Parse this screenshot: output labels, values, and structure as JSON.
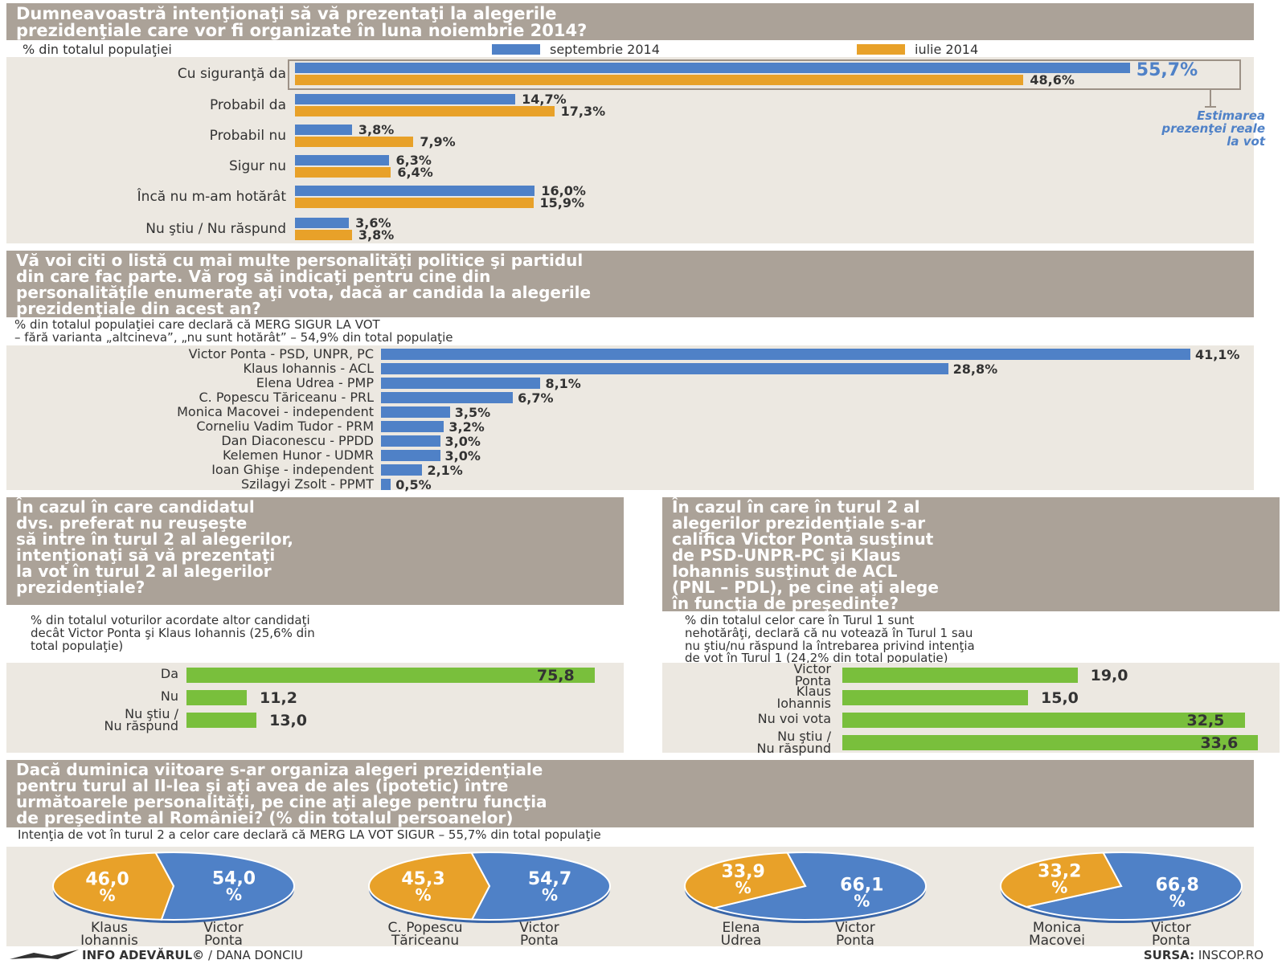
{
  "colors": {
    "blue": "#4f81c7",
    "orange": "#e8a129",
    "green": "#79bf3c",
    "header": "#aba298",
    "panel": "#ece8e1"
  },
  "section1": {
    "title_lines": [
      "Dumneavoastră  intenţionaţi să vă prezentaţi la alegerile",
      "prezidenţiale care vor fi organizate în luna noiembrie 2014?"
    ],
    "note": "% din totalul populaţiei",
    "estimate_lines": [
      "Estimarea",
      "prezenţei reale",
      "la vot"
    ]
  },
  "section2": {
    "title_lines": [
      "Vă voi citi o listă cu mai multe personalităţi politice şi partidul",
      "din care fac parte. Vă rog să indicaţi pentru cine din",
      "personalităţile enumerate aţi vota, dacă ar candida la alegerile",
      "prezidenţiale din acest an?"
    ],
    "note_lines": [
      "% din totalul populaţiei care declară că MERG SIGUR LA VOT",
      "– fără varianta „altcineva”, „nu sunt hotărât” – 54,9% din total populaţie"
    ]
  },
  "section3": {
    "title_lines": [
      "În cazul în care candidatul",
      "dvs. preferat nu reuşeşte",
      "să intre în turul 2 al alegerilor,",
      "intenţionaţi să vă prezentaţi",
      "la vot în turul 2 al alegerilor",
      "prezidenţiale?"
    ],
    "note_lines": [
      "% din totalul voturilor acordate altor candidaţi",
      "decât Victor Ponta şi Klaus Iohannis (25,6% din",
      "total populaţie)"
    ]
  },
  "section4": {
    "title_lines": [
      "În cazul în care în turul 2 al",
      "alegerilor prezidenţiale s-ar",
      "califica Victor Ponta susţinut",
      "de PSD-UNPR-PC şi Klaus",
      "Iohannis susţinut de ACL",
      "(PNL – PDL), pe cine aţi alege",
      "în funcţia de preşedinte?"
    ],
    "note_lines": [
      "% din totalul celor care în Turul 1 sunt",
      "nehotărâţi, declară că nu votează în Turul 1 sau",
      "nu ştiu/nu răspund la întrebarea privind intenţia",
      "de vot în Turul 1 (24,2% din total populaţie)"
    ]
  },
  "section5": {
    "title_lines": [
      "Dacă duminica viitoare s-ar organiza alegeri prezidenţiale",
      "pentru turul al II-lea şi aţi avea de ales (ipotetic) între",
      "următoarele personalităţi, pe cine aţi alege pentru funcţia",
      "de preşedinte al României? (% din totalul persoanelor)"
    ],
    "note": "Intenţia de vot în turul 2 a celor care declară că MERG LA VOT SIGUR – 55,7% din total populaţie"
  },
  "footer": {
    "left_bold": "INFO ADEVĂRUL©",
    "left_rest": " / DANA DONCIU",
    "right_bold": "SURSA:",
    "right_rest": " INSCOP.RO"
  },
  "chart_data": [
    {
      "type": "bar",
      "categories": [
        "Cu siguranţă da",
        "Probabil da",
        "Probabil nu",
        "Sigur nu",
        "Încă nu m-am hotărât",
        "Nu ştiu / Nu răspund"
      ],
      "series": [
        {
          "name": "septembrie 2014",
          "values": [
            55.7,
            14.7,
            3.8,
            6.3,
            16.0,
            3.6
          ],
          "labels": [
            "55,7%",
            "14,7%",
            "3,8%",
            "6,3%",
            "16,0%",
            "3,6%"
          ]
        },
        {
          "name": "iulie 2014",
          "values": [
            48.6,
            17.3,
            7.9,
            6.4,
            15.9,
            3.8
          ],
          "labels": [
            "48,6%",
            "17,3%",
            "7,9%",
            "6,4%",
            "15,9%",
            "3,8%"
          ]
        }
      ]
    },
    {
      "type": "bar",
      "categories": [
        "Victor Ponta - PSD, UNPR, PC",
        "Klaus Iohannis - ACL",
        "Elena Udrea - PMP",
        "C. Popescu Tăriceanu - PRL",
        "Monica Macovei - independent",
        "Corneliu Vadim Tudor - PRM",
        "Dan Diaconescu - PPDD",
        "Kelemen Hunor - UDMR",
        "Ioan Ghişe - independent",
        "Szilagyi Zsolt - PPMT"
      ],
      "values": [
        41.1,
        28.8,
        8.1,
        6.7,
        3.5,
        3.2,
        3.0,
        3.0,
        2.1,
        0.5
      ],
      "labels": [
        "41,1%",
        "28,8%",
        "8,1%",
        "6,7%",
        "3,5%",
        "3,2%",
        "3,0%",
        "3,0%",
        "2,1%",
        "0,5%"
      ]
    },
    {
      "type": "bar",
      "categories": [
        "Da",
        "Nu",
        "Nu ştiu / Nu răspund"
      ],
      "values": [
        75.8,
        11.2,
        13.0
      ],
      "labels": [
        "75,8",
        "11,2",
        "13,0"
      ]
    },
    {
      "type": "bar",
      "categories": [
        "Victor Ponta",
        "Klaus Iohannis",
        "Nu voi vota",
        "Nu ştiu / Nu răspund"
      ],
      "values": [
        19.0,
        15.0,
        32.5,
        33.6
      ],
      "labels": [
        "19,0",
        "15,0",
        "32,5",
        "33,6"
      ]
    },
    {
      "type": "pie",
      "pies": [
        {
          "left": {
            "name": "Klaus Iohannis",
            "value": 46.0,
            "label": "46,0 %"
          },
          "right": {
            "name": "Victor Ponta",
            "value": 54.0,
            "label": "54,0 %"
          }
        },
        {
          "left": {
            "name": "C. Popescu Tăriceanu",
            "value": 45.3,
            "label": "45,3 %"
          },
          "right": {
            "name": "Victor Ponta",
            "value": 54.7,
            "label": "54,7 %"
          }
        },
        {
          "left": {
            "name": "Elena Udrea",
            "value": 33.9,
            "label": "33,9 %"
          },
          "right": {
            "name": "Victor Ponta",
            "value": 66.1,
            "label": "66,1 %"
          }
        },
        {
          "left": {
            "name": "Monica Macovei",
            "value": 33.2,
            "label": "33,2 %"
          },
          "right": {
            "name": "Victor Ponta",
            "value": 66.8,
            "label": "66,8 %"
          }
        }
      ]
    }
  ]
}
